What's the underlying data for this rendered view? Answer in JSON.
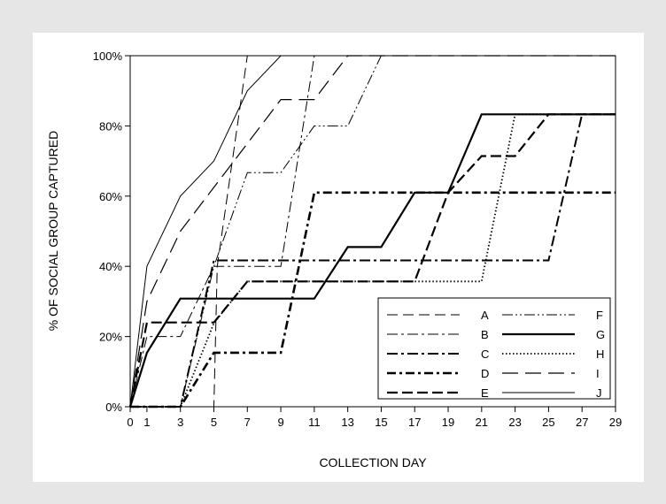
{
  "chart_data": {
    "type": "line",
    "title": "",
    "xlabel": "COLLECTION DAY",
    "ylabel": "% OF SOCIAL GROUP CAPTURED",
    "xlim": [
      0,
      29
    ],
    "ylim": [
      0,
      100
    ],
    "x_ticks": [
      0,
      1,
      3,
      5,
      7,
      9,
      11,
      13,
      15,
      17,
      19,
      21,
      23,
      25,
      27,
      29
    ],
    "y_ticks": [
      0,
      20,
      40,
      60,
      80,
      100
    ],
    "y_tick_labels": [
      "0%",
      "20%",
      "40%",
      "60%",
      "80%",
      "100%"
    ],
    "grid": false,
    "legend_position": "bottom-right",
    "series": [
      {
        "name": "A",
        "style": "long-dash-thin",
        "x": [
          0,
          5,
          5.2,
          7,
          29
        ],
        "y": [
          0,
          0,
          40,
          100,
          100
        ]
      },
      {
        "name": "B",
        "style": "dash-dot-thin",
        "x": [
          0,
          1,
          3,
          5,
          9,
          11,
          13,
          29
        ],
        "y": [
          0,
          20,
          20,
          40,
          40,
          100,
          100,
          100
        ]
      },
      {
        "name": "C",
        "style": "dash-dot-thick",
        "x": [
          0,
          3,
          5,
          25,
          27,
          29
        ],
        "y": [
          0,
          0,
          41.7,
          41.7,
          83.3,
          83.3
        ]
      },
      {
        "name": "D",
        "style": "dash-dot-heavy",
        "x": [
          0,
          3,
          5,
          9,
          11,
          19,
          21,
          29
        ],
        "y": [
          0,
          0,
          15.4,
          15.4,
          61,
          61,
          61,
          61
        ]
      },
      {
        "name": "E",
        "style": "long-dash-thick",
        "x": [
          0,
          1,
          3,
          5,
          7,
          17,
          19,
          21,
          23,
          25,
          29
        ],
        "y": [
          0,
          24,
          24,
          24,
          35.7,
          35.7,
          61,
          71.4,
          71.4,
          83.3,
          83.3
        ]
      },
      {
        "name": "F",
        "style": "dash-dot-dot-thin",
        "x": [
          0,
          3,
          5,
          7,
          9,
          11,
          13,
          15,
          29
        ],
        "y": [
          0,
          0,
          40,
          66.7,
          66.7,
          80,
          80,
          100,
          100
        ]
      },
      {
        "name": "G",
        "style": "solid-thick",
        "x": [
          0,
          1,
          3,
          11,
          13,
          15,
          17,
          19,
          21,
          29
        ],
        "y": [
          0,
          15.4,
          30.8,
          30.8,
          45.5,
          45.5,
          61,
          61,
          83.3,
          83.3
        ]
      },
      {
        "name": "H",
        "style": "dotted",
        "x": [
          0,
          3,
          5,
          7,
          21,
          23,
          29
        ],
        "y": [
          0,
          0,
          23.8,
          35.7,
          35.7,
          83.3,
          83.3
        ]
      },
      {
        "name": "I",
        "style": "long-dash-medium",
        "x": [
          0,
          1,
          3,
          5,
          7,
          9,
          11,
          13,
          29
        ],
        "y": [
          0,
          30,
          50,
          62.5,
          75,
          87.5,
          87.5,
          100,
          100
        ]
      },
      {
        "name": "J",
        "style": "solid-thin",
        "x": [
          0,
          1,
          3,
          5,
          7,
          9,
          29
        ],
        "y": [
          0,
          40,
          60,
          70,
          90,
          100,
          100
        ]
      }
    ]
  }
}
